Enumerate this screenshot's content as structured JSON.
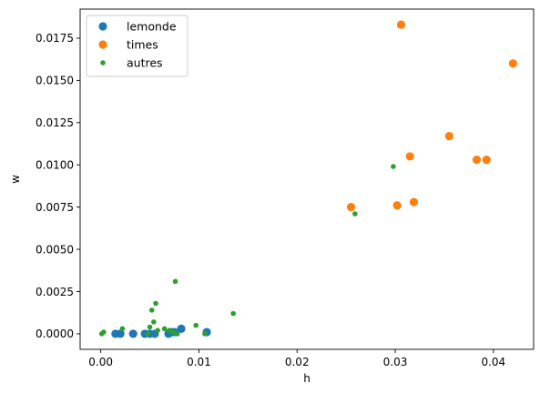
{
  "chart_data": {
    "type": "scatter",
    "title": "",
    "xlabel": "h",
    "ylabel": "w",
    "xlim": [
      -0.0021,
      0.0441
    ],
    "ylim": [
      -0.00092,
      0.01922
    ],
    "xticks": [
      0.0,
      0.01,
      0.02,
      0.03,
      0.04
    ],
    "xtick_labels": [
      "0.00",
      "0.01",
      "0.02",
      "0.03",
      "0.04"
    ],
    "yticks": [
      0.0,
      0.0025,
      0.005,
      0.0075,
      0.01,
      0.0125,
      0.015,
      0.0175
    ],
    "ytick_labels": [
      "0.0000",
      "0.0025",
      "0.0050",
      "0.0075",
      "0.0100",
      "0.0125",
      "0.0150",
      "0.0175"
    ],
    "grid": false,
    "legend_position": "top-left",
    "series": [
      {
        "name": "lemonde",
        "color": "#1f77b4",
        "marker_size": "large",
        "x": [
          0.0015,
          0.002,
          0.0033,
          0.0045,
          0.005,
          0.0055,
          0.0069,
          0.0072,
          0.0075,
          0.0082,
          0.0108
        ],
        "y": [
          0.0,
          0.0,
          0.0,
          0.0,
          0.0,
          0.0,
          0.0,
          0.0001,
          0.0001,
          0.0003,
          0.0001
        ]
      },
      {
        "name": "times",
        "color": "#ff7f0e",
        "marker_size": "large",
        "x": [
          0.0255,
          0.0302,
          0.0306,
          0.0315,
          0.0319,
          0.0355,
          0.0383,
          0.0393,
          0.042
        ],
        "y": [
          0.0075,
          0.0076,
          0.0183,
          0.0105,
          0.0078,
          0.0117,
          0.0103,
          0.0103,
          0.016
        ],
        "draw_order": "after_autres"
      },
      {
        "name": "autres",
        "color": "#2ca02c",
        "marker_size": "small",
        "x": [
          0.0001,
          0.0003,
          0.0022,
          0.0048,
          0.005,
          0.0052,
          0.0054,
          0.0056,
          0.0058,
          0.0065,
          0.007,
          0.0074,
          0.0076,
          0.0078,
          0.0097,
          0.0106,
          0.0135,
          0.0259,
          0.0298
        ],
        "y": [
          0.0,
          0.0001,
          0.0003,
          0.0,
          0.0004,
          0.0014,
          0.0007,
          0.0018,
          0.0002,
          0.0003,
          0.0002,
          0.0001,
          0.0031,
          0.0,
          0.0005,
          0.0,
          0.0012,
          0.0071,
          0.0099
        ]
      }
    ]
  }
}
